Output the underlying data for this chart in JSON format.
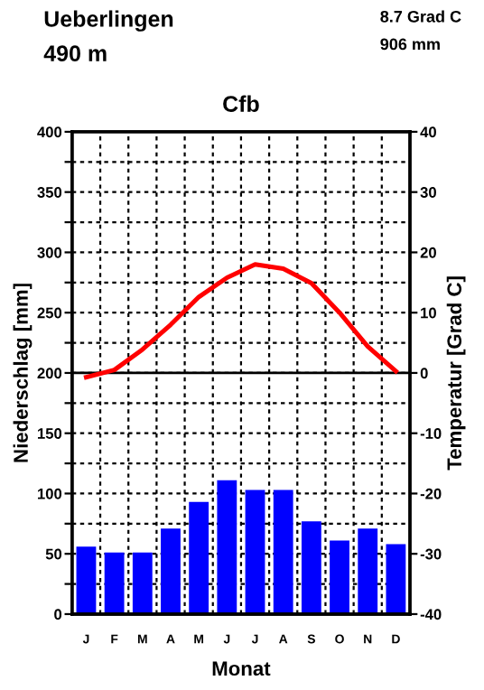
{
  "chart_data": {
    "type": "bar",
    "title": "Cfb",
    "xlabel": "Monat",
    "ylabel": "Niederschlag [mm]",
    "y2label": "Temperatur [Grad C]",
    "annotations": [
      "Ueberlingen",
      "490 m",
      "8.7 Grad C",
      "906 mm"
    ],
    "categories": [
      "J",
      "F",
      "M",
      "A",
      "M",
      "J",
      "J",
      "A",
      "S",
      "O",
      "N",
      "D"
    ],
    "series": [
      {
        "color": "#0000ff",
        "values": [
          56,
          51,
          51,
          71,
          93,
          111,
          103,
          103,
          77,
          61,
          71,
          58
        ]
      },
      {
        "type": "line",
        "axis": "y2",
        "color": "#ff0000",
        "values": [
          -0.7,
          0.5,
          3.9,
          8.0,
          12.6,
          15.8,
          18.0,
          17.3,
          14.9,
          10.0,
          4.4,
          0.3
        ]
      }
    ],
    "ylim": [
      0,
      400
    ],
    "yticks": [
      0,
      {
        "value": 25,
        "label": null
      },
      50,
      {
        "value": 75,
        "label": null
      },
      100,
      {
        "value": 125,
        "label": null
      },
      150,
      {
        "value": 175,
        "label": null
      },
      200,
      {
        "value": 225,
        "label": null
      },
      250,
      {
        "value": 275,
        "label": null
      },
      300,
      {
        "value": 325,
        "label": null
      },
      350,
      {
        "value": 375,
        "label": null
      },
      400
    ],
    "y2lim": [
      -40,
      40
    ],
    "y2ticks": [
      -40,
      -30,
      -20,
      -10,
      0,
      10,
      20,
      30,
      40
    ],
    "ref_lines": [
      {
        "axis": "y2",
        "value": 0,
        "color": "#000000",
        "line_style": "solid"
      }
    ],
    "grid": true
  }
}
